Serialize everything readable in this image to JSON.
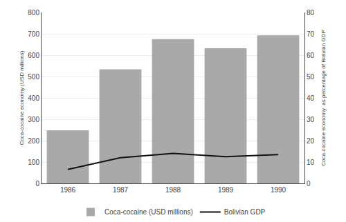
{
  "chart_data": {
    "type": "bar",
    "categories": [
      "1986",
      "1987",
      "1988",
      "1989",
      "1990"
    ],
    "series": [
      {
        "name": "Coca-cocaine (USD millions)",
        "type": "bar",
        "color": "#a9a9a9",
        "values": [
          248,
          534,
          675,
          632,
          693
        ]
      },
      {
        "name": "Bolivian GDP",
        "type": "line",
        "color": "#111111",
        "axis": "y2",
        "values": [
          6.5,
          12.0,
          14.0,
          12.5,
          13.5
        ]
      }
    ],
    "ylabel": "Coca-cocaine economy (USD millions)",
    "y2label": "Coca-cocaine economy  as percentage of Bolivian GDP",
    "ylim": [
      0,
      800
    ],
    "yticks": [
      0,
      100,
      200,
      300,
      400,
      500,
      600,
      700,
      800
    ],
    "y2lim": [
      0,
      80
    ],
    "y2ticks": [
      0,
      10,
      20,
      30,
      40,
      50,
      60,
      70,
      80
    ],
    "grid": true,
    "legend": "bottom"
  }
}
